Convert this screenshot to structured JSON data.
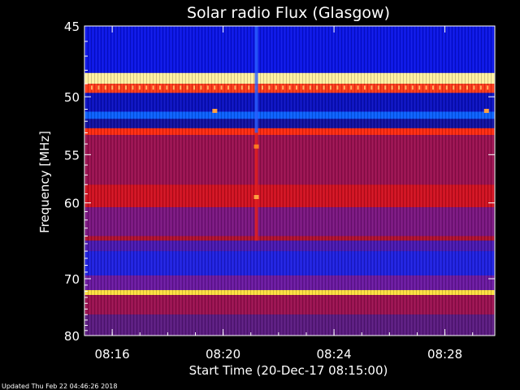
{
  "chart_data": {
    "type": "heatmap",
    "title": "Solar radio Flux (Glasgow)",
    "xlabel": "Start Time (20-Dec-17 08:15:00)",
    "ylabel": "Frequency [MHz]",
    "x_ticks": [
      "08:16",
      "08:20",
      "08:24",
      "08:28"
    ],
    "x_tick_minutes": [
      16,
      20,
      24,
      28
    ],
    "x_range_minutes": [
      15.0,
      29.8
    ],
    "y_ticks": [
      45,
      50,
      55,
      60,
      70,
      80
    ],
    "y_range": [
      45,
      80
    ],
    "y_scale": "reciprocal",
    "colormap": [
      "#1b1020",
      "#2a1060",
      "#0000ff",
      "#ff0000",
      "#ffff00",
      "#ffffff"
    ],
    "bands": [
      {
        "f_from": 45.0,
        "f_to": 48.2,
        "color": "#0a14e6"
      },
      {
        "f_from": 48.2,
        "f_to": 49.0,
        "color": "#fff0a0"
      },
      {
        "f_from": 49.0,
        "f_to": 49.7,
        "color": "#ff3a1a"
      },
      {
        "f_from": 49.7,
        "f_to": 51.2,
        "color": "#0a10c0"
      },
      {
        "f_from": 51.2,
        "f_to": 51.8,
        "color": "#0a60ff"
      },
      {
        "f_from": 51.8,
        "f_to": 52.6,
        "color": "#1010a0"
      },
      {
        "f_from": 52.6,
        "f_to": 53.2,
        "color": "#ff2a10"
      },
      {
        "f_from": 53.2,
        "f_to": 58.0,
        "color": "#9a1050"
      },
      {
        "f_from": 58.0,
        "f_to": 60.5,
        "color": "#d01020"
      },
      {
        "f_from": 60.5,
        "f_to": 64.0,
        "color": "#7a1580"
      },
      {
        "f_from": 64.0,
        "f_to": 64.6,
        "color": "#b01030"
      },
      {
        "f_from": 64.6,
        "f_to": 66.0,
        "color": "#4a18b0"
      },
      {
        "f_from": 66.0,
        "f_to": 69.5,
        "color": "#1e20e0"
      },
      {
        "f_from": 69.5,
        "f_to": 71.8,
        "color": "#6a18a0"
      },
      {
        "f_from": 71.8,
        "f_to": 72.6,
        "color": "#ffe040"
      },
      {
        "f_from": 72.6,
        "f_to": 76.0,
        "color": "#9a1050"
      },
      {
        "f_from": 76.0,
        "f_to": 80.0,
        "color": "#5a1a80"
      }
    ],
    "burst_time_minute": 21.2,
    "spots": [
      {
        "minute": 21.2,
        "freq": 54.2,
        "color": "#ff7a20"
      },
      {
        "minute": 21.2,
        "freq": 59.3,
        "color": "#ffa040"
      },
      {
        "minute": 19.7,
        "freq": 51.1,
        "color": "#ffa040"
      },
      {
        "minute": 29.5,
        "freq": 51.1,
        "color": "#ffa040"
      }
    ]
  },
  "footer": "Updated Thu Feb 22 04:46:26 2018"
}
